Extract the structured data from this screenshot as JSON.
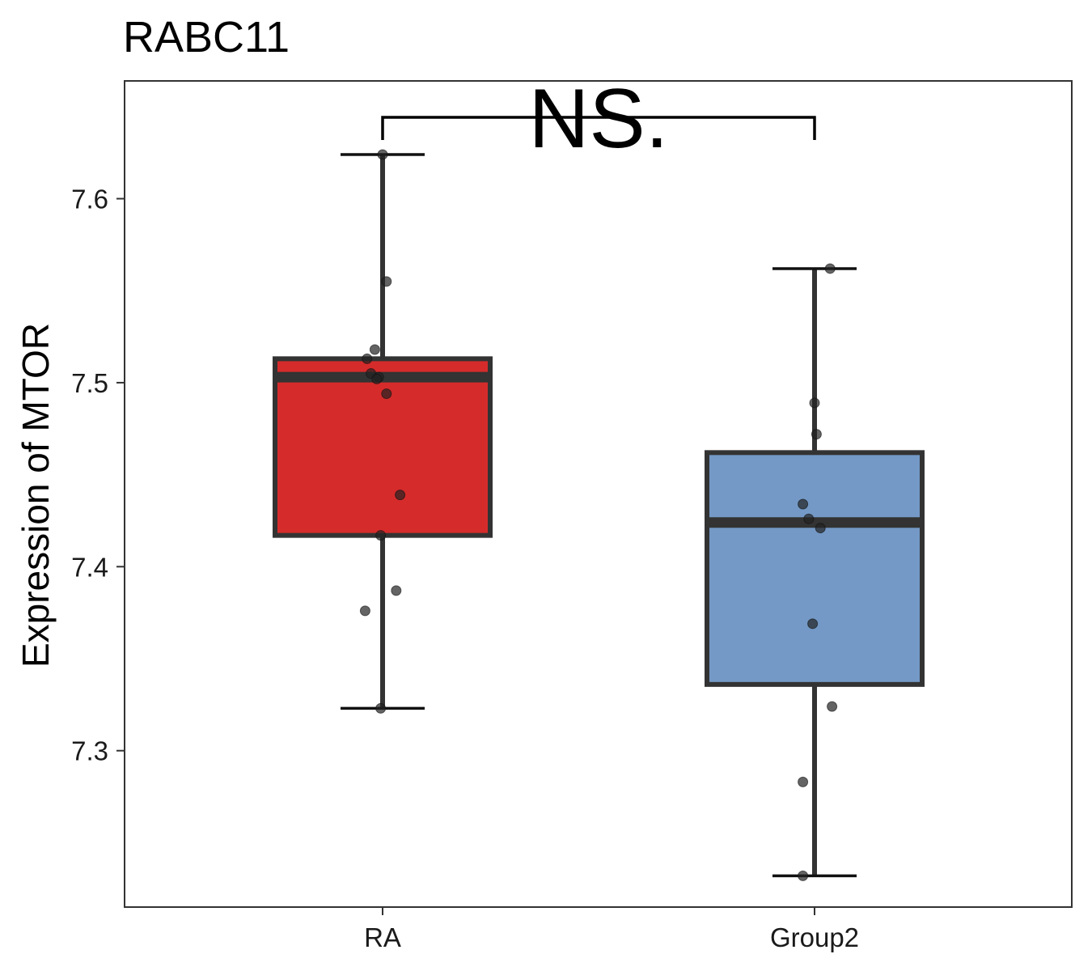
{
  "chart_data": {
    "type": "box",
    "title": "RABC11",
    "xlabel": "",
    "ylabel": "Expression of MTOR",
    "categories": [
      "RA",
      "Group2"
    ],
    "ylim": [
      7.215,
      7.664
    ],
    "yticks": [
      7.3,
      7.4,
      7.5,
      7.6
    ],
    "ytick_labels": [
      "7.3",
      "7.4",
      "7.5",
      "7.6"
    ],
    "grid": false,
    "legend": "none",
    "colors": {
      "RA": "#d62b2b",
      "Group2": "#7499c6",
      "outline": "#333333",
      "point": "#222222"
    },
    "boxes": [
      {
        "category": "RA",
        "whisker_low": 7.323,
        "q1": 7.417,
        "median": 7.503,
        "q3": 7.513,
        "whisker_high": 7.624,
        "points": [
          {
            "jitter": 0.0,
            "y": 7.624
          },
          {
            "jitter": 0.01,
            "y": 7.555
          },
          {
            "jitter": -0.02,
            "y": 7.518
          },
          {
            "jitter": -0.04,
            "y": 7.513
          },
          {
            "jitter": -0.03,
            "y": 7.505
          },
          {
            "jitter": -0.01,
            "y": 7.503
          },
          {
            "jitter": -0.015,
            "y": 7.502
          },
          {
            "jitter": 0.01,
            "y": 7.494
          },
          {
            "jitter": 0.045,
            "y": 7.439
          },
          {
            "jitter": -0.005,
            "y": 7.417
          },
          {
            "jitter": 0.035,
            "y": 7.387
          },
          {
            "jitter": -0.045,
            "y": 7.376
          },
          {
            "jitter": -0.005,
            "y": 7.323
          }
        ]
      },
      {
        "category": "Group2",
        "whisker_low": 7.232,
        "q1": 7.336,
        "median": 7.424,
        "q3": 7.462,
        "whisker_high": 7.562,
        "points": [
          {
            "jitter": 0.04,
            "y": 7.562
          },
          {
            "jitter": 0.0,
            "y": 7.489
          },
          {
            "jitter": 0.005,
            "y": 7.472
          },
          {
            "jitter": -0.03,
            "y": 7.434
          },
          {
            "jitter": -0.015,
            "y": 7.426
          },
          {
            "jitter": 0.015,
            "y": 7.421
          },
          {
            "jitter": -0.005,
            "y": 7.369
          },
          {
            "jitter": 0.045,
            "y": 7.324
          },
          {
            "jitter": -0.03,
            "y": 7.283
          },
          {
            "jitter": -0.03,
            "y": 7.232
          }
        ]
      }
    ],
    "annotation": {
      "label": "NS.",
      "from": "RA",
      "to": "Group2"
    }
  }
}
